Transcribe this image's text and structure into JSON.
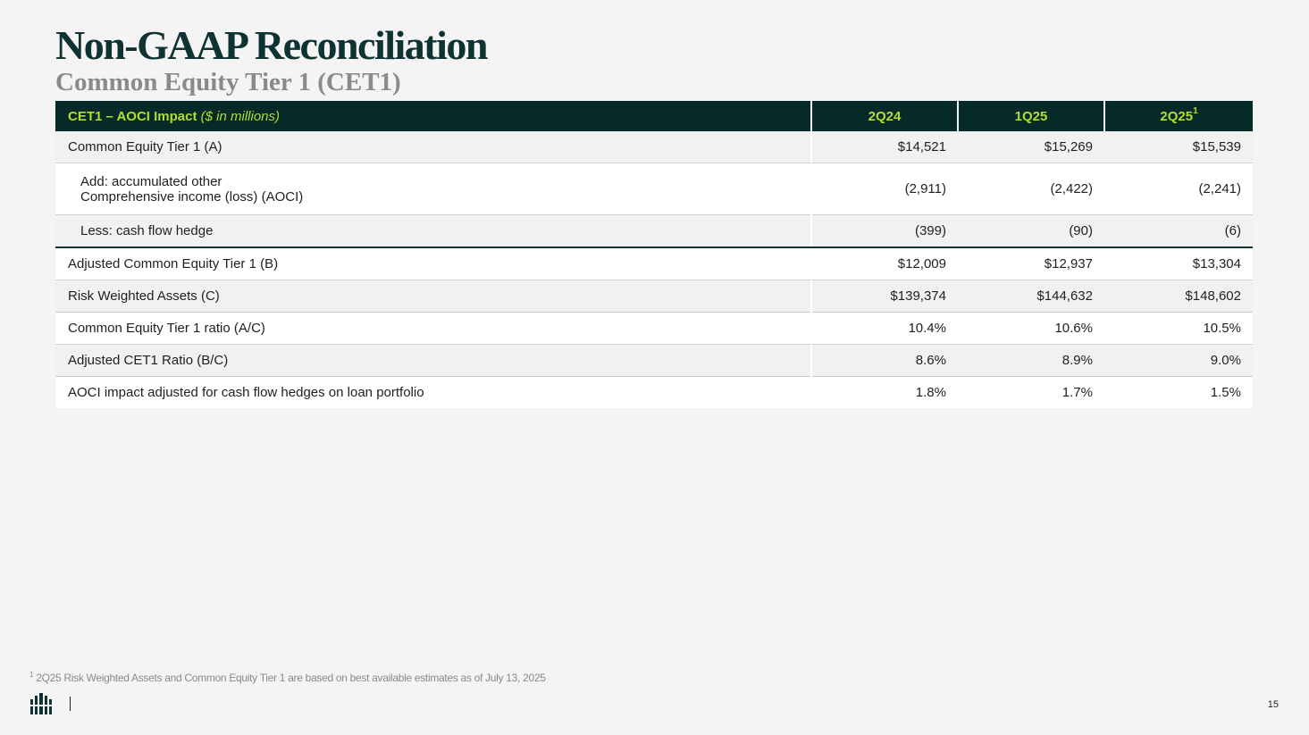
{
  "title": "Non-GAAP Reconciliation",
  "subtitle": "Common Equity Tier 1 (CET1)",
  "table": {
    "header": {
      "label": "CET1 – AOCI Impact",
      "unit": "($ in millions)",
      "columns": [
        {
          "label": "2Q24",
          "sup": ""
        },
        {
          "label": "1Q25",
          "sup": ""
        },
        {
          "label": "2Q25",
          "sup": "1"
        }
      ]
    },
    "rows": [
      {
        "label": "Common Equity Tier 1 (A)",
        "values": [
          "$14,521",
          "$15,269",
          "$15,539"
        ]
      },
      {
        "label_line1": "Add: accumulated other",
        "label_line2": "Comprehensive income (loss) (AOCI)",
        "values": [
          "(2,911)",
          "(2,422)",
          "(2,241)"
        ]
      },
      {
        "label": "Less: cash flow hedge",
        "values": [
          "(399)",
          "(90)",
          "(6)"
        ]
      },
      {
        "label": "Adjusted Common Equity Tier 1 (B)",
        "values": [
          "$12,009",
          "$12,937",
          "$13,304"
        ]
      },
      {
        "label": "Risk Weighted Assets (C)",
        "values": [
          "$139,374",
          "$144,632",
          "$148,602"
        ]
      },
      {
        "label": "Common Equity Tier 1 ratio (A/C)",
        "values": [
          "10.4%",
          "10.6%",
          "10.5%"
        ]
      },
      {
        "label": "Adjusted CET1 Ratio (B/C)",
        "values": [
          "8.6%",
          "8.9%",
          "9.0%"
        ]
      },
      {
        "label": "AOCI impact adjusted for cash flow hedges on loan portfolio",
        "values": [
          "1.8%",
          "1.7%",
          "1.5%"
        ]
      }
    ]
  },
  "footnote": {
    "marker": "1",
    "text": "2Q25 Risk Weighted Assets and Common Equity Tier 1 are based on best available estimates as of July 13, 2025"
  },
  "page_number": "15",
  "logo_icon": "company-logo-icon",
  "colors": {
    "header_bg": "#062a28",
    "header_text": "#b3dc2f",
    "title": "#0f3232"
  }
}
